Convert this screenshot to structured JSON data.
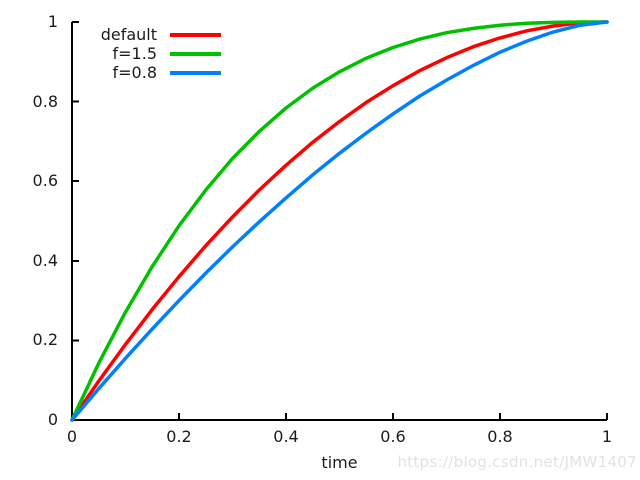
{
  "watermark": "https://blog.csdn.net/JMW1407",
  "colors": {
    "watermark": "#e0e2e6",
    "axis": "#000000",
    "tick_text": "#1c1c1c"
  },
  "chart_data": {
    "type": "line",
    "title": "",
    "xlabel": "time",
    "ylabel": "",
    "xlim": [
      0,
      1
    ],
    "ylim": [
      0,
      1
    ],
    "grid": false,
    "border": "left-bottom-only",
    "legend_position": "top-left-inside",
    "axis_color": "#000000",
    "background": "#ffffff",
    "x_ticks": {
      "values": [
        0,
        0.2,
        0.4,
        0.6,
        0.8,
        1
      ],
      "labels": [
        "0",
        "0.2",
        "0.4",
        "0.6",
        "0.8",
        "1"
      ]
    },
    "y_ticks": {
      "values": [
        0,
        0.2,
        0.4,
        0.6,
        0.8,
        1
      ],
      "labels": [
        "0",
        "0.2",
        "0.4",
        "0.6",
        "0.8",
        "1"
      ]
    },
    "x": [
      0,
      0.05,
      0.1,
      0.15,
      0.2,
      0.25,
      0.3,
      0.35,
      0.4,
      0.45,
      0.5,
      0.55,
      0.6,
      0.65,
      0.7,
      0.75,
      0.8,
      0.85,
      0.9,
      0.95,
      1
    ],
    "series": [
      {
        "name": "default",
        "color": "#ff0000",
        "values": [
          0,
          0.098,
          0.19,
          0.278,
          0.36,
          0.438,
          0.51,
          0.578,
          0.64,
          0.698,
          0.75,
          0.798,
          0.84,
          0.878,
          0.91,
          0.938,
          0.96,
          0.978,
          0.99,
          0.998,
          1
        ]
      },
      {
        "name": "f=1.5",
        "color": "#00c000",
        "values": [
          0,
          0.143,
          0.271,
          0.386,
          0.488,
          0.578,
          0.657,
          0.725,
          0.784,
          0.834,
          0.875,
          0.909,
          0.936,
          0.957,
          0.973,
          0.984,
          0.992,
          0.997,
          0.999,
          1,
          1
        ]
      },
      {
        "name": "f=0.8",
        "color": "#0080ff",
        "values": [
          0,
          0.079,
          0.155,
          0.229,
          0.3,
          0.369,
          0.435,
          0.498,
          0.558,
          0.616,
          0.67,
          0.721,
          0.769,
          0.814,
          0.854,
          0.891,
          0.924,
          0.952,
          0.975,
          0.992,
          1
        ]
      }
    ]
  }
}
